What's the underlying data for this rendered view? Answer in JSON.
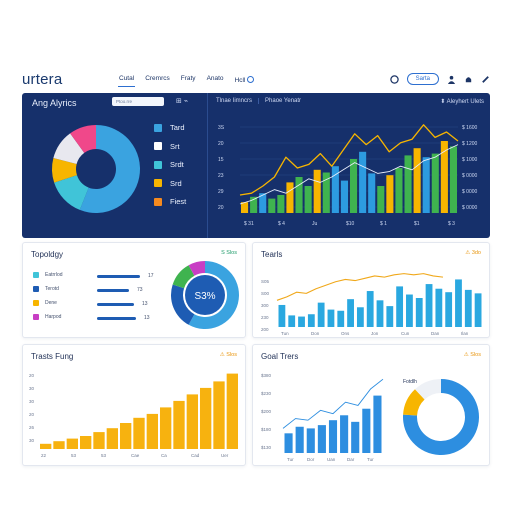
{
  "topbar": {
    "logo": "urtera",
    "nav": [
      "Cutal",
      "Cremrcs",
      "Fraty",
      "Anato",
      "Hcll"
    ],
    "search_pill": "Sarta",
    "icons": [
      "clock-icon",
      "person-icon",
      "bell-icon",
      "pen-icon"
    ]
  },
  "hero": {
    "title": "Ang Alyrics",
    "search_placeholder": "Ptoo.rre",
    "controls": "⊞ ⌁",
    "legend": [
      {
        "label": "Tard",
        "color": "#3aa3e0"
      },
      {
        "label": "Srt",
        "color": "#ffffff"
      },
      {
        "label": "Srdt",
        "color": "#40c4d8"
      },
      {
        "label": "Srd",
        "color": "#f7b500"
      },
      {
        "label": "Fiest",
        "color": "#f58a1f"
      }
    ],
    "tabs": [
      "Tlnae Iimncrs",
      "Phaoe Yenatr"
    ],
    "right_control": "⬍ Aleyhert Ulets"
  },
  "donut_main": {
    "slices": [
      {
        "value": 56,
        "color": "#3aa3e0"
      },
      {
        "value": 14,
        "color": "#40c4d8"
      },
      {
        "value": 9,
        "color": "#f7b500"
      },
      {
        "value": 11,
        "color": "#e8e8ef"
      },
      {
        "value": 10,
        "color": "#f0488a"
      }
    ]
  },
  "hero_chart": {
    "y_labels": [
      "$ 1600",
      "$ 1200",
      "$ 1000",
      "$ 0000",
      "$ 0000",
      "$ 0000"
    ],
    "y_labels_left": [
      "3S",
      "20",
      "15",
      "23",
      "29",
      "20"
    ],
    "x_labels": [
      "$ 31",
      "$ 4",
      "Ju",
      "$10",
      "$ 1",
      "$1",
      "$ 3"
    ],
    "bars": [
      {
        "v": 12,
        "c": "#f7b500"
      },
      {
        "v": 18,
        "c": "#3fb34f"
      },
      {
        "v": 22,
        "c": "#2d9be0"
      },
      {
        "v": 16,
        "c": "#3fb34f"
      },
      {
        "v": 20,
        "c": "#3fb34f"
      },
      {
        "v": 34,
        "c": "#f7b500"
      },
      {
        "v": 40,
        "c": "#3fb34f"
      },
      {
        "v": 30,
        "c": "#3fb34f"
      },
      {
        "v": 48,
        "c": "#f7b500"
      },
      {
        "v": 45,
        "c": "#3fb34f"
      },
      {
        "v": 52,
        "c": "#2d9be0"
      },
      {
        "v": 36,
        "c": "#2d9be0"
      },
      {
        "v": 60,
        "c": "#3fb34f"
      },
      {
        "v": 68,
        "c": "#2d9be0"
      },
      {
        "v": 44,
        "c": "#2d9be0"
      },
      {
        "v": 30,
        "c": "#3fb34f"
      },
      {
        "v": 42,
        "c": "#f7b500"
      },
      {
        "v": 50,
        "c": "#3fb34f"
      },
      {
        "v": 64,
        "c": "#3fb34f"
      },
      {
        "v": 72,
        "c": "#f7b500"
      },
      {
        "v": 62,
        "c": "#2d9be0"
      },
      {
        "v": 66,
        "c": "#3fb34f"
      },
      {
        "v": 80,
        "c": "#f7b500"
      },
      {
        "v": 74,
        "c": "#3fb34f"
      }
    ],
    "line_orange": [
      20,
      22,
      30,
      40,
      62,
      50,
      54,
      66,
      52,
      70,
      88,
      76,
      86,
      68,
      78,
      82,
      98,
      84,
      90,
      80
    ],
    "line_white": [
      10,
      14,
      20,
      26,
      22,
      30,
      38,
      34,
      40,
      48,
      56,
      50,
      44,
      46,
      52,
      48,
      58,
      62,
      70,
      76
    ]
  },
  "topology": {
    "title": "Topoldgy",
    "control": "S Slos",
    "items": [
      {
        "label": "Eatrrlod",
        "color": "#40c4d8",
        "bar": 0.86,
        "value": "17"
      },
      {
        "label": "Terotd",
        "color": "#1e5cb3",
        "bar": 0.64,
        "value": "73"
      },
      {
        "label": "Dene",
        "color": "#f7b500",
        "bar": 0.74,
        "value": "13"
      },
      {
        "label": "Harpod",
        "color": "#c83ec4",
        "bar": 0.78,
        "value": "13"
      }
    ],
    "donut_label": "S3%",
    "donut_slices": [
      {
        "value": 58,
        "color": "#3aa3e0"
      },
      {
        "value": 22,
        "color": "#1e5cb3"
      },
      {
        "value": 12,
        "color": "#3fb34f"
      },
      {
        "value": 8,
        "color": "#c83ec4"
      }
    ]
  },
  "trends": {
    "title": "Tearls",
    "control": "⚠ 3do",
    "y_labels": [
      "S05",
      "S00",
      "300",
      "230",
      "200"
    ],
    "x_labels": [
      "Tun",
      "Don",
      "Ons",
      "Jon",
      "Cun",
      "Dan",
      "Ilan"
    ],
    "bars": [
      38,
      20,
      18,
      22,
      42,
      30,
      28,
      48,
      34,
      62,
      46,
      36,
      70,
      56,
      50,
      74,
      66,
      60,
      82,
      64,
      58
    ],
    "line": [
      46,
      52,
      60,
      58,
      66,
      72,
      78,
      82,
      80,
      84,
      88,
      86,
      90,
      92,
      90,
      92,
      88,
      86
    ]
  },
  "traffic": {
    "title": "Trasts Fung",
    "control": "⚠ Slos",
    "y_labels": [
      "20",
      "30",
      "30",
      "20",
      "26",
      "30"
    ],
    "x_labels": [
      "22",
      "53",
      "53",
      "Cae",
      "Ca",
      "Cad",
      "Uer"
    ],
    "values": [
      4,
      6,
      8,
      10,
      13,
      16,
      20,
      24,
      27,
      32,
      37,
      42,
      47,
      52,
      58
    ]
  },
  "goal": {
    "title": "Goal Trers",
    "control": "⚠ Slos",
    "y_labels": [
      "$380",
      "$230",
      "$200",
      "$180",
      "$130"
    ],
    "x_labels": [
      "Tur",
      "Dor",
      "Uan",
      "Dar",
      "Tur"
    ],
    "bars": [
      24,
      32,
      30,
      34,
      40,
      46,
      38,
      54,
      70
    ],
    "line": [
      30,
      42,
      40,
      52,
      48,
      62,
      58,
      78,
      90
    ],
    "donut_label": "Fotdlh",
    "donut_slices": [
      {
        "value": 76,
        "color": "#2d8ee0"
      },
      {
        "value": 12,
        "color": "#f7b500"
      },
      {
        "value": 12,
        "color": "#eef1f6"
      }
    ]
  }
}
